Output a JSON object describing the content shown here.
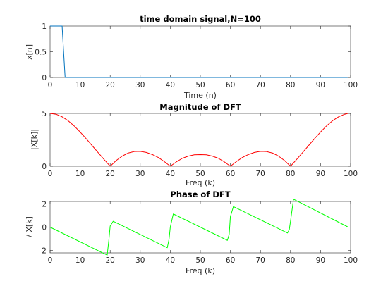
{
  "chart_data": [
    {
      "type": "line",
      "title": "time domain signal,N=100",
      "xlabel": "Time (n)",
      "ylabel": "x[n]",
      "xlim": [
        0,
        100
      ],
      "ylim": [
        0,
        1
      ],
      "xticks": [
        "0",
        "10",
        "20",
        "30",
        "40",
        "50",
        "60",
        "70",
        "80",
        "90",
        "100"
      ],
      "yticks": [
        "0",
        "0.5",
        "1"
      ],
      "grid": false,
      "color": "#0072BD",
      "series": [
        {
          "x": [
            0,
            1,
            2,
            3,
            4,
            5,
            6,
            99
          ],
          "y": [
            1,
            1,
            1,
            1,
            1,
            0,
            0,
            0
          ]
        }
      ]
    },
    {
      "type": "line",
      "title": "Magnitude of DFT",
      "xlabel": "Freq (k)",
      "ylabel": "|X[k]|",
      "xlim": [
        0,
        100
      ],
      "ylim": [
        0,
        5
      ],
      "xticks": [
        "0",
        "10",
        "20",
        "30",
        "40",
        "50",
        "60",
        "70",
        "80",
        "90",
        "100"
      ],
      "yticks": [
        "0",
        "5"
      ],
      "grid": false,
      "color": "#FF0000",
      "series": [
        {
          "x": [
            0,
            2,
            4,
            6,
            8,
            10,
            12,
            14,
            16,
            18,
            20,
            22,
            24,
            26,
            28,
            30,
            32,
            34,
            36,
            38,
            40,
            42,
            44,
            46,
            48,
            50,
            52,
            54,
            56,
            58,
            60,
            62,
            64,
            66,
            68,
            70,
            72,
            74,
            76,
            78,
            80,
            82,
            84,
            86,
            88,
            90,
            92,
            94,
            96,
            98,
            99
          ],
          "y": [
            5,
            4.92,
            4.68,
            4.31,
            3.82,
            3.24,
            2.61,
            1.95,
            1.29,
            0.63,
            0,
            0.54,
            0.96,
            1.25,
            1.39,
            1.41,
            1.31,
            1.11,
            0.83,
            0.44,
            0,
            0.41,
            0.75,
            0.96,
            1.08,
            1.1,
            1.08,
            0.96,
            0.75,
            0.41,
            0,
            0.44,
            0.83,
            1.11,
            1.31,
            1.41,
            1.39,
            1.25,
            0.96,
            0.54,
            0,
            0.63,
            1.29,
            1.95,
            2.61,
            3.24,
            3.82,
            4.31,
            4.68,
            4.92,
            4.98
          ]
        }
      ]
    },
    {
      "type": "line",
      "title": "Phase of DFT",
      "xlabel": "Freq (k)",
      "ylabel": "/ X[k]",
      "xlim": [
        0,
        100
      ],
      "ylim": [
        -2.2,
        2.2
      ],
      "xticks": [
        "0",
        "10",
        "20",
        "30",
        "40",
        "50",
        "60",
        "70",
        "80",
        "90",
        "100"
      ],
      "yticks": [
        "-2",
        "0",
        "2"
      ],
      "grid": false,
      "color": "#00FF00",
      "series": [
        {
          "x": [
            0,
            19,
            19.6,
            20,
            21,
            39,
            39.6,
            40,
            41,
            59,
            59.6,
            60,
            61,
            79,
            79.6,
            80,
            81,
            99
          ],
          "y": [
            0,
            -2.39,
            -1.0,
            0.1,
            0.5,
            -1.76,
            -1.0,
            0.0,
            1.13,
            -1.13,
            -0.6,
            0.9,
            1.76,
            -0.5,
            -0.2,
            0.5,
            2.39,
            0.03
          ]
        }
      ]
    }
  ]
}
